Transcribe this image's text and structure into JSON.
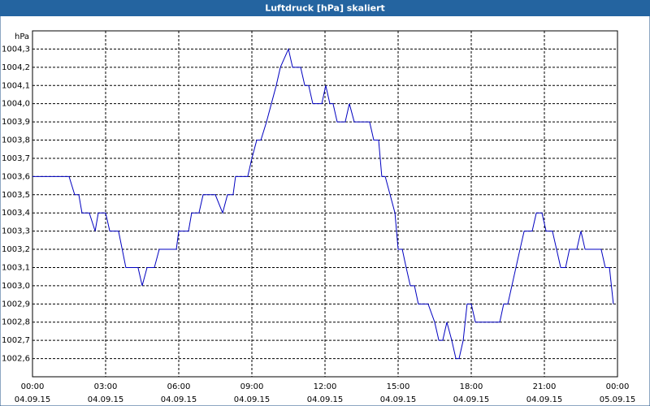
{
  "chart_data": {
    "type": "line",
    "title": "Luftdruck [hPa] skaliert",
    "y_label": "hPa",
    "x": [
      0,
      1.5,
      1.73,
      1.9,
      2.03,
      2.33,
      2.57,
      2.7,
      3,
      3.17,
      3.53,
      3.83,
      4.33,
      4.5,
      4.7,
      5,
      5.2,
      5.9,
      6,
      6.4,
      6.53,
      6.83,
      7,
      7.5,
      7.8,
      8,
      8.23,
      8.33,
      8.83,
      9,
      9.2,
      9.37,
      9.6,
      9.8,
      10,
      10.17,
      10.5,
      10.67,
      11,
      11.17,
      11.33,
      11.5,
      11.87,
      12.03,
      12.2,
      12.33,
      12.5,
      12.83,
      13,
      13.2,
      13.83,
      14,
      14.2,
      14.33,
      14.47,
      14.67,
      14.87,
      15,
      15.17,
      15.33,
      15.5,
      15.67,
      15.83,
      16.23,
      16.5,
      16.67,
      16.83,
      17,
      17.2,
      17.37,
      17.5,
      17.67,
      17.83,
      18,
      18.17,
      19.17,
      19.33,
      19.5,
      20,
      20.17,
      20.5,
      20.67,
      20.9,
      21.07,
      21.33,
      21.67,
      21.87,
      22.03,
      22.33,
      22.5,
      22.67,
      23.33,
      23.5,
      23.67,
      23.83
    ],
    "series": [
      {
        "name": "Luftdruck",
        "color": "#0000c0",
        "values": [
          1003.6,
          1003.6,
          1003.5,
          1003.5,
          1003.4,
          1003.4,
          1003.3,
          1003.4,
          1003.4,
          1003.3,
          1003.3,
          1003.1,
          1003.1,
          1003.0,
          1003.1,
          1003.1,
          1003.2,
          1003.2,
          1003.3,
          1003.3,
          1003.4,
          1003.4,
          1003.5,
          1003.5,
          1003.4,
          1003.5,
          1003.5,
          1003.6,
          1003.6,
          1003.7,
          1003.8,
          1003.8,
          1003.9,
          1004.0,
          1004.1,
          1004.2,
          1004.3,
          1004.2,
          1004.2,
          1004.1,
          1004.1,
          1004.0,
          1004.0,
          1004.1,
          1004.0,
          1004.0,
          1003.9,
          1003.9,
          1004.0,
          1003.9,
          1003.9,
          1003.8,
          1003.8,
          1003.6,
          1003.6,
          1003.5,
          1003.4,
          1003.2,
          1003.2,
          1003.1,
          1003.0,
          1003.0,
          1002.9,
          1002.9,
          1002.8,
          1002.7,
          1002.7,
          1002.8,
          1002.7,
          1002.6,
          1002.6,
          1002.7,
          1002.9,
          1002.9,
          1002.8,
          1002.8,
          1002.9,
          1002.9,
          1003.2,
          1003.3,
          1003.3,
          1003.4,
          1003.4,
          1003.3,
          1003.3,
          1003.1,
          1003.1,
          1003.2,
          1003.2,
          1003.3,
          1003.2,
          1003.2,
          1003.1,
          1003.1,
          1002.9
        ]
      }
    ],
    "xlim": [
      0,
      24
    ],
    "xticks": [
      {
        "value": 0,
        "label": "00:00 04.09.15"
      },
      {
        "value": 3,
        "label": "03:00 04.09.15"
      },
      {
        "value": 6,
        "label": "06:00 04.09.15"
      },
      {
        "value": 9,
        "label": "09:00 04.09.15"
      },
      {
        "value": 12,
        "label": "12:00 04.09.15"
      },
      {
        "value": 15,
        "label": "15:00 04.09.15"
      },
      {
        "value": 18,
        "label": "18:00 04.09.15"
      },
      {
        "value": 21,
        "label": "21:00 04.09.15"
      },
      {
        "value": 24,
        "label": "00:00 05.09.15"
      }
    ],
    "ylim": [
      1002.5,
      1004.4
    ],
    "yticks": [
      {
        "value": 1002.6,
        "label": "1002,6"
      },
      {
        "value": 1002.7,
        "label": "1002,7"
      },
      {
        "value": 1002.8,
        "label": "1002,8"
      },
      {
        "value": 1002.9,
        "label": "1002,9"
      },
      {
        "value": 1003.0,
        "label": "1003,0"
      },
      {
        "value": 1003.1,
        "label": "1003,1"
      },
      {
        "value": 1003.2,
        "label": "1003,2"
      },
      {
        "value": 1003.3,
        "label": "1003,3"
      },
      {
        "value": 1003.4,
        "label": "1003,4"
      },
      {
        "value": 1003.5,
        "label": "1003,5"
      },
      {
        "value": 1003.6,
        "label": "1003,6"
      },
      {
        "value": 1003.7,
        "label": "1003,7"
      },
      {
        "value": 1003.8,
        "label": "1003,8"
      },
      {
        "value": 1003.9,
        "label": "1003,9"
      },
      {
        "value": 1004.0,
        "label": "1004,0"
      },
      {
        "value": 1004.1,
        "label": "1004,1"
      },
      {
        "value": 1004.2,
        "label": "1004,2"
      },
      {
        "value": 1004.3,
        "label": "1004,3"
      }
    ],
    "grid": true
  }
}
